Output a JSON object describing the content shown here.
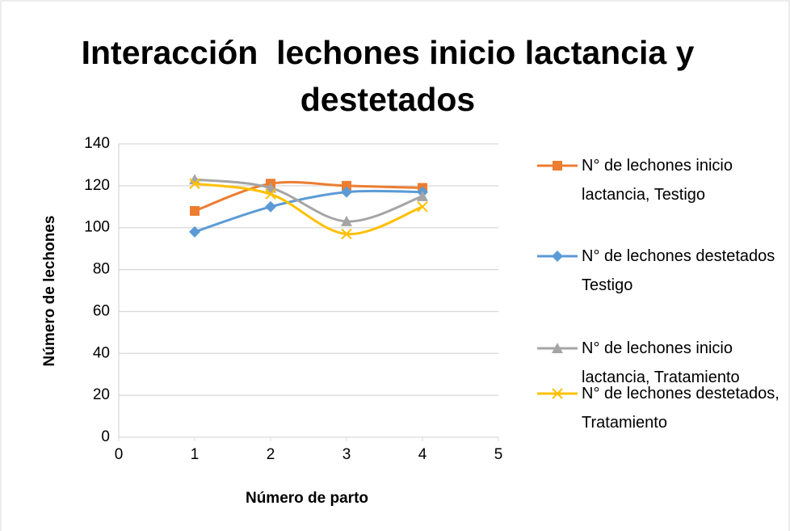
{
  "chart_data": {
    "type": "line",
    "title": "Interacción  lechones inicio lactancia y destetados",
    "x_label": "Número de parto",
    "y_label": "Número de lechones",
    "x": [
      1,
      2,
      3,
      4
    ],
    "series": [
      {
        "name": "N° de lechones inicio lactancia, Testigo",
        "color": "#ed7d31",
        "marker": "square",
        "values": [
          108,
          121,
          120,
          119
        ]
      },
      {
        "name": "N° de lechones destetados Testigo",
        "color": "#5b9bd5",
        "marker": "diamond",
        "values": [
          98,
          110,
          117,
          117
        ]
      },
      {
        "name": "N° de lechones inicio lactancia, Tratamiento",
        "color": "#a5a5a5",
        "marker": "triangle",
        "values": [
          123,
          119,
          103,
          115
        ]
      },
      {
        "name": "N° de lechones destetados, Tratamiento",
        "color": "#ffc000",
        "marker": "x",
        "values": [
          121,
          116,
          97,
          110
        ]
      }
    ],
    "xlim": [
      0,
      5
    ],
    "xticks": [
      0,
      1,
      2,
      3,
      4,
      5
    ],
    "ylim": [
      0,
      140
    ],
    "yticks": [
      0,
      20,
      40,
      60,
      80,
      100,
      120,
      140
    ],
    "grid": true,
    "legend": "right",
    "smooth": true
  }
}
